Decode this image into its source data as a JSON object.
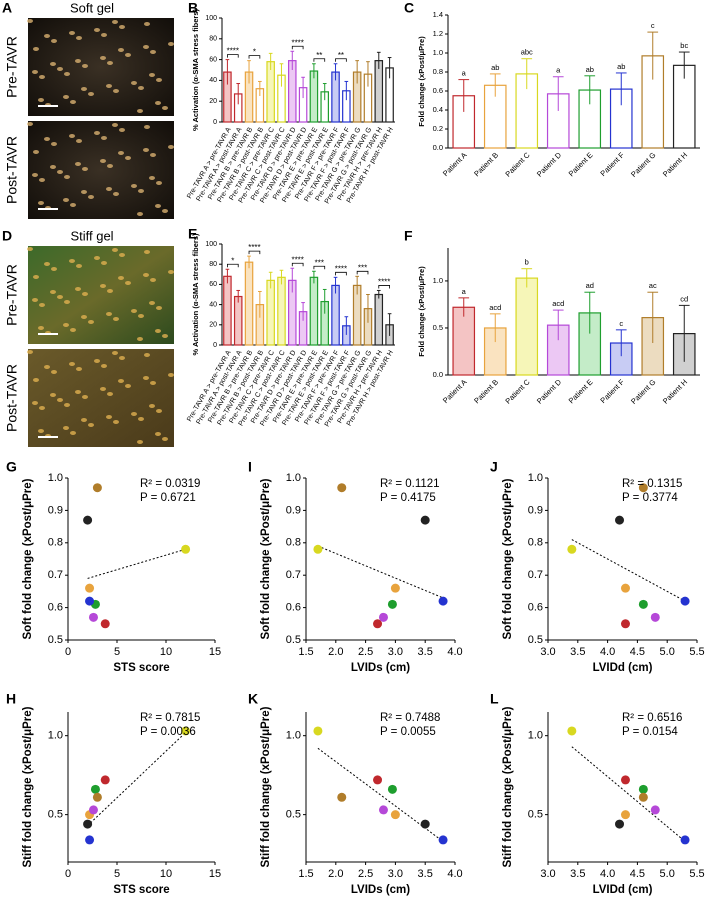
{
  "images": [
    {
      "panel": "A",
      "title": "Soft gel",
      "rows": [
        "Pre-TAVR",
        "Post-TAVR"
      ]
    },
    {
      "panel": "D",
      "title": "Stiff gel",
      "rows": [
        "Pre-TAVR",
        "Post-TAVR"
      ]
    }
  ],
  "chart_data": [
    {
      "panel": "B",
      "type": "bar",
      "ylabel": "% Activation (α-SMA stress fibers)",
      "categories": [
        "Pre-TAVR A > pre-TAVR A",
        "Pre-TAVR A > post-TAVR A",
        "Pre-TAVR B > pre-TAVR B",
        "Pre-TAVR B > post-TAVR B",
        "Pre-TAVR C > pre-TAVR C",
        "Pre-TAVR C > post-TAVR C",
        "Pre-TAVR D > pre-TAVR D",
        "Pre-TAVR D > post-TAVR D",
        "Pre-TAVR E > pre-TAVR E",
        "Pre-TAVR E > post-TAVR E",
        "Pre-TAVR F > pre-TAVR F",
        "Pre-TAVR F > post-TAVR F",
        "Pre-TAVR G > pre-TAVR G",
        "Pre-TAVR G > post-TAVR G",
        "Pre-TAVR H > pre-TAVR H",
        "Pre-TAVR H > post-TAVR H"
      ],
      "values": [
        48,
        27,
        48,
        32,
        58,
        45,
        59,
        33,
        49,
        29,
        48,
        30,
        48,
        46,
        59,
        52
      ],
      "errors": [
        12,
        10,
        11,
        7,
        8,
        11,
        9,
        10,
        7,
        8,
        8,
        9,
        11,
        12,
        8,
        10
      ],
      "colors": [
        "#c0282d",
        "#c0282d",
        "#e8a33d",
        "#e8a33d",
        "#d8d820",
        "#d8d820",
        "#b548d8",
        "#b548d8",
        "#1e9e2e",
        "#1e9e2e",
        "#2433d0",
        "#2433d0",
        "#b07d2a",
        "#b07d2a",
        "#222222",
        "#222222"
      ],
      "fills": [
        "#f4c4c4",
        "#ffffff",
        "#fae3c0",
        "#ffffff",
        "#f6f6b8",
        "#ffffff",
        "#ecc8f4",
        "#ffffff",
        "#c4ecc8",
        "#ffffff",
        "#c8ccf4",
        "#ffffff",
        "#ecdcc0",
        "#ffffff",
        "#d0d0d0",
        "#ffffff"
      ],
      "significance": [
        "****",
        "*",
        null,
        "****",
        "**",
        "**",
        null,
        null
      ],
      "ylim": [
        0,
        100
      ],
      "yticks": [
        0,
        20,
        40,
        60,
        80,
        100
      ]
    },
    {
      "panel": "C",
      "type": "bar",
      "ylabel": "Fold change (xPost/μPre)",
      "categories": [
        "Patient A",
        "Patient B",
        "Patient C",
        "Patient D",
        "Patient E",
        "Patient F",
        "Patient G",
        "Patient H"
      ],
      "values": [
        0.55,
        0.66,
        0.78,
        0.57,
        0.61,
        0.62,
        0.97,
        0.87
      ],
      "errors": [
        0.17,
        0.12,
        0.16,
        0.18,
        0.15,
        0.17,
        0.25,
        0.14
      ],
      "colors": [
        "#c0282d",
        "#e8a33d",
        "#d8d820",
        "#b548d8",
        "#1e9e2e",
        "#2433d0",
        "#b07d2a",
        "#222222"
      ],
      "fills": [
        "#ffffff",
        "#ffffff",
        "#ffffff",
        "#ffffff",
        "#ffffff",
        "#ffffff",
        "#ffffff",
        "#ffffff"
      ],
      "letters": [
        "a",
        "ab",
        "abc",
        "a",
        "ab",
        "ab",
        "c",
        "bc"
      ],
      "ylim": [
        0,
        1.4
      ],
      "yticks": [
        {
          "value": 0,
          "label": "0.0"
        },
        0.2,
        0.4,
        0.6,
        0.8,
        {
          "value": 1,
          "label": "1.0"
        },
        1.2,
        1.4
      ]
    },
    {
      "panel": "E",
      "type": "bar",
      "ylabel": "% Activation (α-SMA stress fibers)",
      "categories": [
        "Pre-TAVR A > pre-TAVR A",
        "Pre-TAVR A > post-TAVR A",
        "Pre-TAVR B > pre-TAVR B",
        "Pre-TAVR B > post-TAVR B",
        "Pre-TAVR C > pre-TAVR C",
        "Pre-TAVR C > post-TAVR C",
        "Pre-TAVR D > pre-TAVR D",
        "Pre-TAVR D > post-TAVR D",
        "Pre-TAVR E > pre-TAVR E",
        "Pre-TAVR E > post-TAVR E",
        "Pre-TAVR F > pre-TAVR F",
        "Pre-TAVR F > post-TAVR F",
        "Pre-TAVR G > pre-TAVR G",
        "Pre-TAVR G > post-TAVR G",
        "Pre-TAVR H > pre-TAVR H",
        "Pre-TAVR H > post-TAVR H"
      ],
      "values": [
        68,
        48,
        82,
        40,
        64,
        67,
        64,
        33,
        67,
        43,
        59,
        19,
        59,
        36,
        50,
        20
      ],
      "errors": [
        7,
        6,
        6,
        13,
        8,
        7,
        12,
        9,
        6,
        12,
        8,
        9,
        9,
        14,
        4,
        11
      ],
      "colors": [
        "#c0282d",
        "#c0282d",
        "#e8a33d",
        "#e8a33d",
        "#d8d820",
        "#d8d820",
        "#b548d8",
        "#b548d8",
        "#1e9e2e",
        "#1e9e2e",
        "#2433d0",
        "#2433d0",
        "#b07d2a",
        "#b07d2a",
        "#222222",
        "#222222"
      ],
      "fills": [
        "#f4c4c4",
        "#f4c4c4",
        "#fae3c0",
        "#fae3c0",
        "#f6f6b8",
        "#f6f6b8",
        "#ecc8f4",
        "#ecc8f4",
        "#c4ecc8",
        "#c4ecc8",
        "#c8ccf4",
        "#c8ccf4",
        "#ecdcc0",
        "#ecdcc0",
        "#d0d0d0",
        "#d0d0d0"
      ],
      "significance": [
        "*",
        "****",
        null,
        "****",
        "***",
        "****",
        "***",
        "****"
      ],
      "ylim": [
        0,
        100
      ],
      "yticks": [
        0,
        20,
        40,
        60,
        80,
        100
      ]
    },
    {
      "panel": "F",
      "type": "bar",
      "ylabel": "Fold change (xPost/μPre)",
      "categories": [
        "Patient A",
        "Patient B",
        "Patient C",
        "Patient D",
        "Patient E",
        "Patient F",
        "Patient G",
        "Patient H"
      ],
      "values": [
        0.72,
        0.5,
        1.03,
        0.53,
        0.66,
        0.34,
        0.61,
        0.44
      ],
      "errors": [
        0.1,
        0.15,
        0.1,
        0.16,
        0.22,
        0.14,
        0.27,
        0.3
      ],
      "colors": [
        "#c0282d",
        "#e8a33d",
        "#d8d820",
        "#b548d8",
        "#1e9e2e",
        "#2433d0",
        "#b07d2a",
        "#222222"
      ],
      "fills": [
        "#f4c4c4",
        "#fae3c0",
        "#f6f6b8",
        "#ecc8f4",
        "#c4ecc8",
        "#c8ccf4",
        "#ecdcc0",
        "#d0d0d0"
      ],
      "letters": [
        "a",
        "acd",
        "b",
        "acd",
        "ad",
        "c",
        "ac",
        "cd"
      ],
      "ylim": [
        0,
        1.35
      ],
      "yticks": [
        {
          "value": 0,
          "label": "0.0"
        },
        0.5,
        {
          "value": 1,
          "label": "1.0"
        }
      ]
    },
    {
      "panel": "G",
      "type": "scatter",
      "xlabel": "STS score",
      "ylabel": "Soft fold change (xPost/μPre)",
      "x": [
        3.8,
        2.2,
        12,
        2.6,
        2.8,
        2.2,
        3,
        2
      ],
      "values": [
        0.55,
        0.66,
        0.78,
        0.57,
        0.61,
        0.62,
        0.97,
        0.87
      ],
      "colors": [
        "#c0282d",
        "#e8a33d",
        "#d8d820",
        "#b548d8",
        "#1e9e2e",
        "#2433d0",
        "#b07d2a",
        "#222222"
      ],
      "trendline": {
        "x": [
          2,
          12
        ],
        "y": [
          0.69,
          0.78
        ]
      },
      "annotations": [
        "R² = 0.0319",
        "P = 0.6721"
      ],
      "xlim": [
        0,
        15
      ],
      "xticks": [
        0,
        5,
        10,
        15
      ],
      "ylim": [
        0.5,
        1.0
      ],
      "yticks": [
        0.5,
        0.6,
        0.7,
        0.8,
        0.9,
        {
          "value": 1,
          "label": "1.0"
        }
      ]
    },
    {
      "panel": "I",
      "type": "scatter",
      "xlabel": "LVIDs (cm)",
      "ylabel": "Soft fold change (xPost/μPre)",
      "x": [
        2.7,
        3.0,
        1.7,
        2.8,
        2.95,
        3.8,
        2.1,
        3.5
      ],
      "values": [
        0.55,
        0.66,
        0.78,
        0.57,
        0.61,
        0.62,
        0.97,
        0.87
      ],
      "colors": [
        "#c0282d",
        "#e8a33d",
        "#d8d820",
        "#b548d8",
        "#1e9e2e",
        "#2433d0",
        "#b07d2a",
        "#222222"
      ],
      "trendline": {
        "x": [
          1.7,
          3.8
        ],
        "y": [
          0.79,
          0.63
        ]
      },
      "annotations": [
        "R² = 0.1121",
        "P = 0.4175"
      ],
      "xlim": [
        1.5,
        4.0
      ],
      "xticks": [
        1.5,
        {
          "value": 2,
          "label": "2.0"
        },
        2.5,
        {
          "value": 3,
          "label": "3.0"
        },
        3.5,
        {
          "value": 4,
          "label": "4.0"
        }
      ],
      "ylim": [
        0.5,
        1.0
      ],
      "yticks": [
        0.5,
        0.6,
        0.7,
        0.8,
        0.9,
        {
          "value": 1,
          "label": "1.0"
        }
      ]
    },
    {
      "panel": "J",
      "type": "scatter",
      "xlabel": "LVIDd (cm)",
      "ylabel": "Soft fold change (xPost/μPre)",
      "x": [
        4.3,
        4.3,
        3.4,
        4.8,
        4.6,
        5.3,
        4.6,
        4.2
      ],
      "values": [
        0.55,
        0.66,
        0.78,
        0.57,
        0.61,
        0.62,
        0.97,
        0.87
      ],
      "colors": [
        "#c0282d",
        "#e8a33d",
        "#d8d820",
        "#b548d8",
        "#1e9e2e",
        "#2433d0",
        "#b07d2a",
        "#222222"
      ],
      "trendline": {
        "x": [
          3.4,
          5.3
        ],
        "y": [
          0.81,
          0.62
        ]
      },
      "annotations": [
        "R² = 0.1315",
        "P = 0.3774"
      ],
      "xlim": [
        3.0,
        5.5
      ],
      "xticks": [
        {
          "value": 3,
          "label": "3.0"
        },
        3.5,
        {
          "value": 4,
          "label": "4.0"
        },
        4.5,
        {
          "value": 5,
          "label": "5.0"
        },
        5.5
      ],
      "ylim": [
        0.5,
        1.0
      ],
      "yticks": [
        0.5,
        0.6,
        0.7,
        0.8,
        0.9,
        {
          "value": 1,
          "label": "1.0"
        }
      ]
    },
    {
      "panel": "H",
      "type": "scatter",
      "xlabel": "STS score",
      "ylabel": "Stiff fold change (xPost/μPre)",
      "x": [
        3.8,
        2.2,
        12,
        2.6,
        2.8,
        2.2,
        3,
        2
      ],
      "values": [
        0.72,
        0.5,
        1.03,
        0.53,
        0.66,
        0.34,
        0.61,
        0.44
      ],
      "colors": [
        "#c0282d",
        "#e8a33d",
        "#d8d820",
        "#b548d8",
        "#1e9e2e",
        "#2433d0",
        "#b07d2a",
        "#222222"
      ],
      "trendline": {
        "x": [
          2,
          12
        ],
        "y": [
          0.43,
          1.02
        ]
      },
      "annotations": [
        "R² = 0.7815",
        "P = 0.0036"
      ],
      "xlim": [
        0,
        15
      ],
      "xticks": [
        0,
        5,
        10,
        15
      ],
      "ylim": [
        0.2,
        1.15
      ],
      "yticks": [
        0.5,
        {
          "value": 1,
          "label": "1.0"
        }
      ]
    },
    {
      "panel": "K",
      "type": "scatter",
      "xlabel": "LVIDs (cm)",
      "ylabel": "Stiff fold change (xPost/μPre)",
      "x": [
        2.7,
        3.0,
        1.7,
        2.8,
        2.95,
        3.8,
        2.1,
        3.5
      ],
      "values": [
        0.72,
        0.5,
        1.03,
        0.53,
        0.66,
        0.34,
        0.61,
        0.44
      ],
      "colors": [
        "#c0282d",
        "#e8a33d",
        "#d8d820",
        "#b548d8",
        "#1e9e2e",
        "#2433d0",
        "#b07d2a",
        "#222222"
      ],
      "trendline": {
        "x": [
          1.7,
          3.8
        ],
        "y": [
          0.92,
          0.33
        ]
      },
      "annotations": [
        "R² = 0.7488",
        "P = 0.0055"
      ],
      "xlim": [
        1.5,
        4.0
      ],
      "xticks": [
        1.5,
        {
          "value": 2,
          "label": "2.0"
        },
        2.5,
        {
          "value": 3,
          "label": "3.0"
        },
        3.5,
        {
          "value": 4,
          "label": "4.0"
        }
      ],
      "ylim": [
        0.2,
        1.15
      ],
      "yticks": [
        0.5,
        {
          "value": 1,
          "label": "1.0"
        }
      ]
    },
    {
      "panel": "L",
      "type": "scatter",
      "xlabel": "LVIDd (cm)",
      "ylabel": "Stiff fold change (xPost/μPre)",
      "x": [
        4.3,
        4.3,
        3.4,
        4.8,
        4.6,
        5.3,
        4.6,
        4.2
      ],
      "values": [
        0.72,
        0.5,
        1.03,
        0.53,
        0.66,
        0.34,
        0.61,
        0.44
      ],
      "colors": [
        "#c0282d",
        "#e8a33d",
        "#d8d820",
        "#b548d8",
        "#1e9e2e",
        "#2433d0",
        "#b07d2a",
        "#222222"
      ],
      "trendline": {
        "x": [
          3.4,
          5.3
        ],
        "y": [
          0.93,
          0.33
        ]
      },
      "annotations": [
        "R² = 0.6516",
        "P = 0.0154"
      ],
      "xlim": [
        3.0,
        5.5
      ],
      "xticks": [
        {
          "value": 3,
          "label": "3.0"
        },
        3.5,
        {
          "value": 4,
          "label": "4.0"
        },
        4.5,
        {
          "value": 5,
          "label": "5.0"
        },
        5.5
      ],
      "ylim": [
        0.2,
        1.15
      ],
      "yticks": [
        0.5,
        {
          "value": 1,
          "label": "1.0"
        }
      ]
    }
  ]
}
